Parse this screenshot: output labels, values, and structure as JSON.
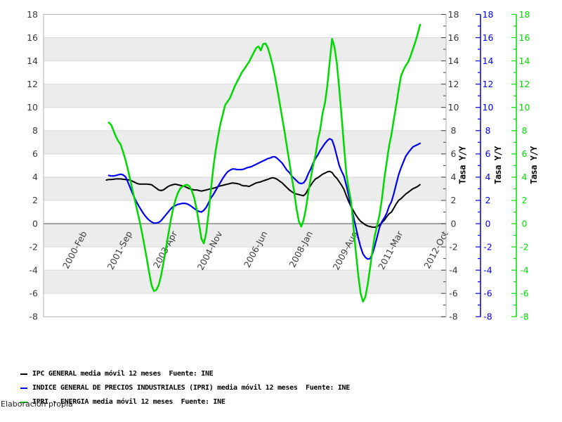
{
  "page": {
    "background": "#ffffff"
  },
  "footer": {
    "credit": "Elaboración propia"
  },
  "legend": {
    "items": [
      {
        "label": "IPC GENERAL media móvil 12 meses  Fuente: INE",
        "color": "#000000"
      },
      {
        "label": "INDICE GENERAL DE PRECIOS INDUSTRIALES (IPRI) media móvil 12 meses  Fuente: INE",
        "color": "#0000ee"
      },
      {
        "label": "IPRI - ENERGIA media móvil 12 meses  Fuente: INE",
        "color": "#00d900"
      }
    ]
  },
  "chart_data": {
    "type": "line",
    "title": "",
    "x_axis": {
      "unit": "month index, 0 = 2000-Feb",
      "tick_labels": [
        "2000-Feb",
        "2001-Sep",
        "2003-Apr",
        "2004-Nov",
        "2006-Jun",
        "2008-Jan",
        "2009-Aug",
        "2011-Mar",
        "2012-Oct"
      ],
      "tick_month_positions": [
        0,
        19,
        38,
        57,
        76,
        95,
        114,
        133,
        152
      ],
      "range_months": [
        -17.45,
        152
      ]
    },
    "y_axis": {
      "range": [
        -8,
        18
      ],
      "tick_step": 2,
      "tick_labels": [
        "18",
        "16",
        "14",
        "12",
        "10",
        "8",
        "6",
        "4",
        "2",
        "0",
        "-2",
        "-4",
        "-6",
        "-8"
      ]
    },
    "y_axes": [
      {
        "id": "left",
        "side": "left",
        "color": "#3a3a3a",
        "label": ""
      },
      {
        "id": "right-black",
        "side": "right",
        "color": "#3a3a3a",
        "label": "Tasa Y/Y"
      },
      {
        "id": "right-blue",
        "side": "right",
        "color": "#0000ee",
        "label": "Tasa Y/Y"
      },
      {
        "id": "right-green",
        "side": "right",
        "color": "#00dd00",
        "label": "Tasa Y/Y"
      }
    ],
    "grid": {
      "bands": [
        [
          16,
          14
        ],
        [
          12,
          10
        ],
        [
          8,
          6
        ],
        [
          4,
          2
        ],
        [
          0,
          -2
        ],
        [
          -4,
          -6
        ]
      ],
      "band_color": "#ececec",
      "line_color": "#d8d8d8",
      "zero_line_color": "#858585",
      "frame_color": "#b2b2b2"
    },
    "series": [
      {
        "name": "IPC GENERAL media móvil 12 meses",
        "color": "#000000",
        "width": 2,
        "start_month": 9,
        "values": [
          3.75,
          3.8,
          3.8,
          3.82,
          3.85,
          3.85,
          3.85,
          3.82,
          3.8,
          3.78,
          3.75,
          3.65,
          3.55,
          3.45,
          3.4,
          3.4,
          3.4,
          3.4,
          3.38,
          3.35,
          3.2,
          3.05,
          2.9,
          2.85,
          2.9,
          3.05,
          3.2,
          3.3,
          3.35,
          3.4,
          3.35,
          3.3,
          3.25,
          3.2,
          3.1,
          3.0,
          2.95,
          2.9,
          2.9,
          2.85,
          2.8,
          2.85,
          2.9,
          2.95,
          3.0,
          3.05,
          3.1,
          3.2,
          3.25,
          3.3,
          3.35,
          3.4,
          3.45,
          3.5,
          3.48,
          3.45,
          3.4,
          3.3,
          3.25,
          3.25,
          3.2,
          3.3,
          3.4,
          3.5,
          3.55,
          3.6,
          3.68,
          3.75,
          3.82,
          3.9,
          3.95,
          3.9,
          3.8,
          3.65,
          3.5,
          3.3,
          3.1,
          2.9,
          2.75,
          2.6,
          2.55,
          2.5,
          2.45,
          2.4,
          2.6,
          3.0,
          3.3,
          3.6,
          3.85,
          3.95,
          4.1,
          4.25,
          4.35,
          4.45,
          4.5,
          4.4,
          4.1,
          3.9,
          3.6,
          3.3,
          2.95,
          2.4,
          1.9,
          1.45,
          1.1,
          0.75,
          0.45,
          0.2,
          0.05,
          -0.1,
          -0.2,
          -0.25,
          -0.3,
          -0.3,
          -0.25,
          -0.1,
          0.1,
          0.3,
          0.6,
          0.85,
          1.0,
          1.35,
          1.7,
          2.0,
          2.15,
          2.35,
          2.55,
          2.7,
          2.85,
          3.0,
          3.1,
          3.2,
          3.35
        ]
      },
      {
        "name": "INDICE GENERAL DE PRECIOS INDUSTRIALES (IPRI) media móvil 12 meses",
        "color": "#0000ee",
        "width": 2.2,
        "start_month": 10,
        "values": [
          4.15,
          4.1,
          4.1,
          4.15,
          4.2,
          4.25,
          4.2,
          4.05,
          3.6,
          3.1,
          2.6,
          2.15,
          1.75,
          1.4,
          1.05,
          0.75,
          0.5,
          0.3,
          0.15,
          0.05,
          0.05,
          0.1,
          0.25,
          0.5,
          0.75,
          1.0,
          1.25,
          1.45,
          1.55,
          1.65,
          1.7,
          1.75,
          1.75,
          1.7,
          1.6,
          1.45,
          1.3,
          1.15,
          1.05,
          1.0,
          1.15,
          1.4,
          1.8,
          2.2,
          2.5,
          2.85,
          3.2,
          3.55,
          3.9,
          4.2,
          4.45,
          4.6,
          4.7,
          4.7,
          4.65,
          4.65,
          4.65,
          4.7,
          4.8,
          4.85,
          4.9,
          5.0,
          5.1,
          5.2,
          5.3,
          5.4,
          5.5,
          5.6,
          5.65,
          5.75,
          5.75,
          5.6,
          5.4,
          5.2,
          4.9,
          4.6,
          4.4,
          4.1,
          3.9,
          3.7,
          3.5,
          3.45,
          3.5,
          3.8,
          4.3,
          4.7,
          5.2,
          5.6,
          5.9,
          6.3,
          6.6,
          6.9,
          7.15,
          7.3,
          7.2,
          6.6,
          5.8,
          5.0,
          4.5,
          4.1,
          3.3,
          2.4,
          1.5,
          0.6,
          -0.3,
          -1.2,
          -2.0,
          -2.6,
          -2.9,
          -3.05,
          -3.0,
          -2.6,
          -1.9,
          -1.1,
          -0.3,
          0.2,
          0.5,
          0.9,
          1.5,
          1.9,
          2.6,
          3.4,
          4.2,
          4.8,
          5.3,
          5.8,
          6.1,
          6.35,
          6.6,
          6.7,
          6.8,
          6.9
        ]
      },
      {
        "name": "IPRI - ENERGIA media móvil 12 meses",
        "color": "#00d900",
        "width": 2.5,
        "start_month": 10,
        "values": [
          8.7,
          8.5,
          8.0,
          7.5,
          7.1,
          6.8,
          6.2,
          5.5,
          4.7,
          3.8,
          2.9,
          2.0,
          1.1,
          0.2,
          -0.8,
          -1.9,
          -3.0,
          -4.2,
          -5.3,
          -5.8,
          -5.7,
          -5.3,
          -4.5,
          -3.4,
          -2.2,
          -1.0,
          0.2,
          1.2,
          2.0,
          2.6,
          3.0,
          3.2,
          3.3,
          3.35,
          3.2,
          2.8,
          2.2,
          1.2,
          0.0,
          -1.3,
          -1.7,
          -0.8,
          0.9,
          2.9,
          4.8,
          6.3,
          7.5,
          8.6,
          9.4,
          10.2,
          10.5,
          10.8,
          11.3,
          11.8,
          12.2,
          12.6,
          13.0,
          13.3,
          13.6,
          13.9,
          14.3,
          14.7,
          15.1,
          15.25,
          14.9,
          15.45,
          15.5,
          15.1,
          14.4,
          13.6,
          12.6,
          11.5,
          10.3,
          9.1,
          7.9,
          6.6,
          5.3,
          4.0,
          2.8,
          1.3,
          0.2,
          -0.25,
          0.3,
          1.3,
          2.7,
          3.9,
          5.0,
          5.9,
          7.2,
          8.1,
          9.5,
          10.4,
          11.9,
          13.9,
          15.9,
          15.2,
          13.8,
          11.6,
          9.2,
          6.7,
          4.3,
          3.0,
          1.9,
          -0.3,
          -2.4,
          -4.4,
          -6.0,
          -6.7,
          -6.3,
          -5.2,
          -3.8,
          -2.3,
          -1.0,
          -0.1,
          0.8,
          2.2,
          3.9,
          5.3,
          6.7,
          7.7,
          9.0,
          10.2,
          11.5,
          12.7,
          13.2,
          13.6,
          13.9,
          14.4,
          15.0,
          15.6,
          16.3,
          17.1
        ]
      }
    ]
  }
}
